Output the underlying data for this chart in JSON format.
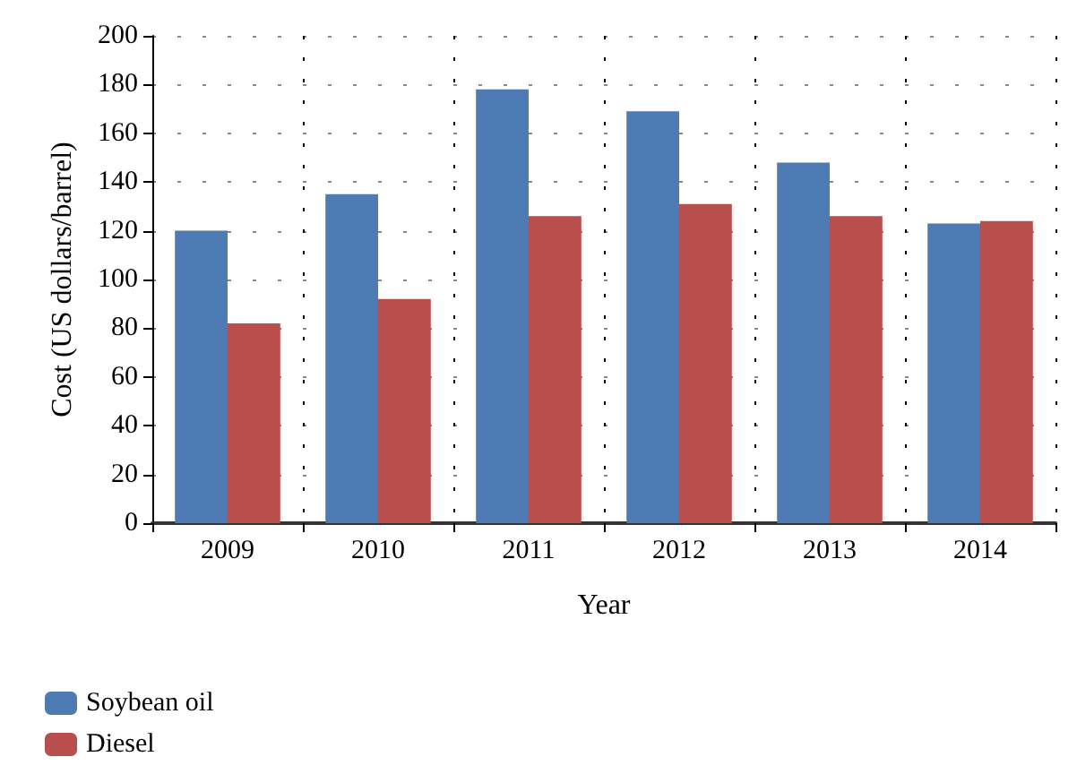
{
  "chart_data": {
    "type": "bar",
    "xlabel": "Year",
    "ylabel": "Cost (US dollars/barrel)",
    "categories": [
      "2009",
      "2010",
      "2011",
      "2012",
      "2013",
      "2014"
    ],
    "series": [
      {
        "name": "Soybean oil",
        "color": "#4f7bb5",
        "values": [
          120,
          135,
          178,
          169,
          148,
          123
        ]
      },
      {
        "name": "Diesel",
        "color": "#b84f4d",
        "values": [
          82,
          92,
          126,
          131,
          126,
          124
        ]
      }
    ],
    "ylim": [
      0,
      200
    ],
    "yticks": [
      0,
      20,
      40,
      60,
      80,
      100,
      120,
      140,
      160,
      180,
      200
    ],
    "grid": true,
    "legend": "bottom left"
  }
}
